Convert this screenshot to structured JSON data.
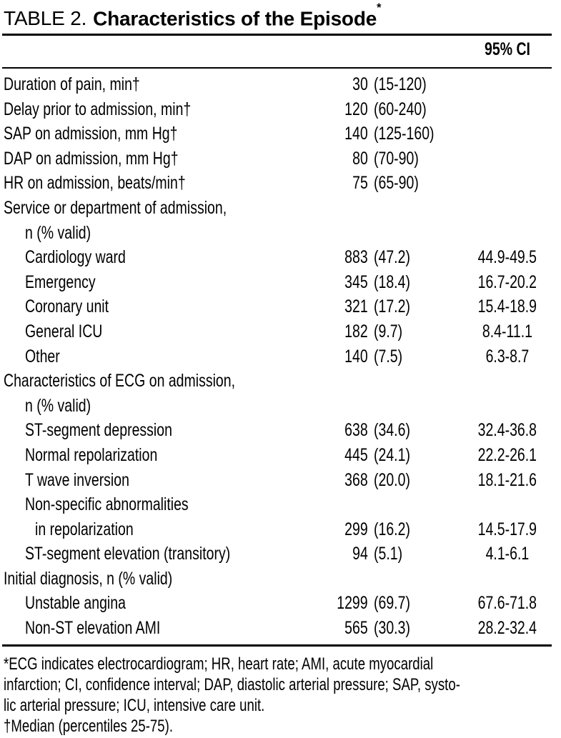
{
  "title": {
    "prefix": "TABLE 2.",
    "text": "Characteristics of the Episode",
    "superscript": "*"
  },
  "header": {
    "ci": "95% CI"
  },
  "rows": [
    {
      "label": "Duration of pain, min†",
      "indent": 0,
      "num": "30",
      "paren": "(15-120)",
      "ci": ""
    },
    {
      "label": "Delay prior to admission, min†",
      "indent": 0,
      "num": "120",
      "paren": "(60-240)",
      "ci": ""
    },
    {
      "label": "SAP on admission, mm Hg†",
      "indent": 0,
      "num": "140",
      "paren": "(125-160)",
      "ci": ""
    },
    {
      "label": "DAP on admission, mm Hg†",
      "indent": 0,
      "num": "80",
      "paren": "(70-90)",
      "ci": ""
    },
    {
      "label": "HR on admission, beats/min†",
      "indent": 0,
      "num": "75",
      "paren": "(65-90)",
      "ci": ""
    },
    {
      "label": "Service or department of admission,",
      "indent": 0,
      "num": "",
      "paren": "",
      "ci": ""
    },
    {
      "label": "n (% valid)",
      "indent": 1,
      "num": "",
      "paren": "",
      "ci": ""
    },
    {
      "label": "Cardiology ward",
      "indent": 1,
      "num": "883",
      "paren": "(47.2)",
      "ci": "44.9-49.5"
    },
    {
      "label": "Emergency",
      "indent": 1,
      "num": "345",
      "paren": "(18.4)",
      "ci": "16.7-20.2"
    },
    {
      "label": "Coronary unit",
      "indent": 1,
      "num": "321",
      "paren": "(17.2)",
      "ci": "15.4-18.9"
    },
    {
      "label": "General ICU",
      "indent": 1,
      "num": "182",
      "paren": "(9.7)",
      "ci": "8.4-11.1"
    },
    {
      "label": "Other",
      "indent": 1,
      "num": "140",
      "paren": "(7.5)",
      "ci": "6.3-8.7"
    },
    {
      "label": "Characteristics of ECG on admission,",
      "indent": 0,
      "num": "",
      "paren": "",
      "ci": ""
    },
    {
      "label": "n (% valid)",
      "indent": 1,
      "num": "",
      "paren": "",
      "ci": ""
    },
    {
      "label": "ST-segment depression",
      "indent": 1,
      "num": "638",
      "paren": "(34.6)",
      "ci": "32.4-36.8"
    },
    {
      "label": "Normal repolarization",
      "indent": 1,
      "num": "445",
      "paren": "(24.1)",
      "ci": "22.2-26.1"
    },
    {
      "label": "T wave inversion",
      "indent": 1,
      "num": "368",
      "paren": "(20.0)",
      "ci": "18.1-21.6"
    },
    {
      "label": "Non-specific abnormalities",
      "indent": 1,
      "num": "",
      "paren": "",
      "ci": ""
    },
    {
      "label": "in repolarization",
      "indent": 2,
      "num": "299",
      "paren": "(16.2)",
      "ci": "14.5-17.9"
    },
    {
      "label": "ST-segment elevation (transitory)",
      "indent": 1,
      "num": "94",
      "paren": "(5.1)",
      "ci": "4.1-6.1"
    },
    {
      "label": "Initial diagnosis, n (% valid)",
      "indent": 0,
      "num": "",
      "paren": "",
      "ci": ""
    },
    {
      "label": "Unstable angina",
      "indent": 1,
      "num": "1299",
      "paren": "(69.7)",
      "ci": "67.6-71.8"
    },
    {
      "label": "Non-ST elevation AMI",
      "indent": 1,
      "num": "565",
      "paren": "(30.3)",
      "ci": "28.2-32.4"
    }
  ],
  "footnotes": {
    "lines": [
      "*ECG indicates electrocardiogram; HR, heart rate; AMI, acute myocardial",
      "infarction; CI, confidence interval; DAP, diastolic arterial pressure; SAP, systo-",
      "lic arterial pressure; ICU, intensive care unit.",
      "†Median (percentiles 25-75)."
    ]
  },
  "colors": {
    "text": "#000000",
    "background": "#ffffff",
    "rule": "#000000"
  }
}
